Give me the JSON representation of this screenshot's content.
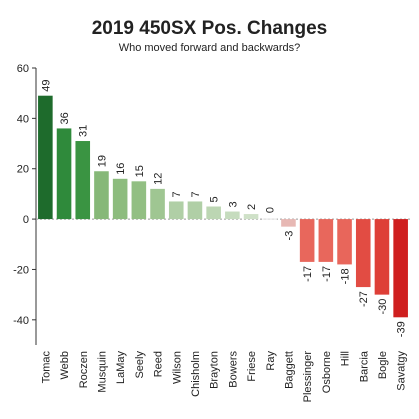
{
  "chart_data": {
    "type": "bar",
    "title": "2019 450SX Pos. Changes",
    "subtitle": "Who moved forward and backwards?",
    "xlabel": "",
    "ylabel": "",
    "ylim": [
      -50,
      60
    ],
    "yticks": [
      -40,
      -20,
      0,
      20,
      40,
      60
    ],
    "categories": [
      "Tomac",
      "Webb",
      "Roczen",
      "Musquin",
      "LaMay",
      "Seely",
      "Reed",
      "Wilson",
      "Chisholm",
      "Brayton",
      "Bowers",
      "Friese",
      "Ray",
      "Baggett",
      "Plessinger",
      "Osborne",
      "Hill",
      "Barcia",
      "Bogle",
      "Savatgy"
    ],
    "values": [
      49,
      36,
      31,
      19,
      16,
      15,
      12,
      7,
      7,
      5,
      3,
      2,
      0,
      -3,
      -17,
      -17,
      -18,
      -27,
      -30,
      -39
    ],
    "colors": [
      "#1e6b2c",
      "#2f8a3b",
      "#3a9442",
      "#86b878",
      "#8dbc7e",
      "#92bf83",
      "#9fc692",
      "#b0cfa6",
      "#b0cfa6",
      "#bcd6b3",
      "#c6dcbe",
      "#cfe1c8",
      "#e6e6e6",
      "#e7b8b4",
      "#e8675c",
      "#e8675c",
      "#e8665b",
      "#e24c43",
      "#de3f37",
      "#cf1f1f"
    ],
    "grid": false,
    "legend": "none"
  }
}
